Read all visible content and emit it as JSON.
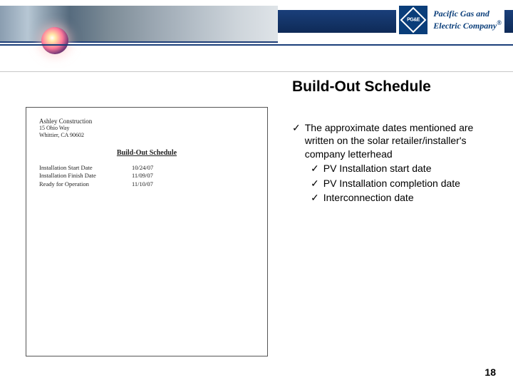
{
  "colors": {
    "brand_blue": "#0a3e7a",
    "bar_gradient_top": "#1a3f7a",
    "bar_gradient_bottom": "#0e2a57",
    "divider": "#c8c8c8",
    "text": "#000000",
    "page_bg": "#ffffff"
  },
  "header": {
    "logo_abbrev": "PG&E",
    "company_line1": "Pacific Gas and",
    "company_line2": "Electric Company",
    "registered_mark": "®"
  },
  "slide": {
    "title": "Build-Out Schedule",
    "page_number": "18"
  },
  "document_thumb": {
    "company": "Ashley Construction",
    "addr_line1": "15 Ohio Way",
    "addr_line2": "Whittier, CA 90602",
    "heading": "Build-Out Schedule",
    "rows": [
      {
        "label": "Installation Start Date",
        "value": "10/24/07"
      },
      {
        "label": "Installation Finish Date",
        "value": "11/09/07"
      },
      {
        "label": "Ready for Operation",
        "value": "11/10/07"
      }
    ]
  },
  "bullets": {
    "checkmark": "✓",
    "lead": "The approximate dates mentioned are written on the solar retailer/installer's company letterhead",
    "items": [
      "PV Installation start date",
      "PV Installation completion date",
      "Interconnection date"
    ]
  }
}
